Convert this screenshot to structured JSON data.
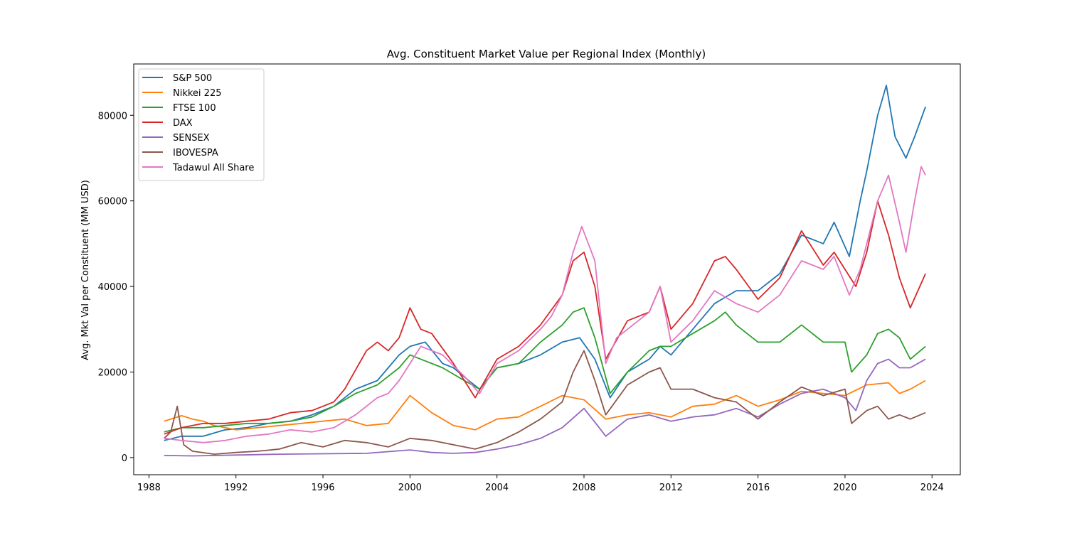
{
  "chart_data": {
    "type": "line",
    "title": "Avg. Constituent Market Value per Regional Index (Monthly)",
    "xlabel": "",
    "ylabel": "Avg. Mkt Val per Constituent (MM USD)",
    "xlim": [
      1987.3,
      2025.3
    ],
    "ylim": [
      -4000,
      92000
    ],
    "x_ticks": [
      1988,
      1992,
      1996,
      2000,
      2004,
      2008,
      2012,
      2016,
      2020,
      2024
    ],
    "x_tick_labels": [
      "1988",
      "1992",
      "1996",
      "2000",
      "2004",
      "2008",
      "2012",
      "2016",
      "2020",
      "2024"
    ],
    "y_ticks": [
      0,
      20000,
      40000,
      60000,
      80000
    ],
    "y_tick_labels": [
      "0",
      "20000",
      "40000",
      "60000",
      "80000"
    ],
    "legend_position": "top-left",
    "grid": false,
    "series": [
      {
        "name": "S&P 500",
        "color": "#1f77b4",
        "x": [
          1988.7,
          1989.5,
          1990.5,
          1991.5,
          1992.5,
          1993.5,
          1994.5,
          1995.5,
          1996.5,
          1997.5,
          1998.5,
          1999.0,
          1999.5,
          2000.0,
          2000.7,
          2001.5,
          2002.0,
          2002.7,
          2003.2,
          2004.0,
          2005.0,
          2006.0,
          2007.0,
          2007.8,
          2008.5,
          2009.2,
          2010.0,
          2011.0,
          2011.5,
          2012.0,
          2013.0,
          2014.0,
          2015.0,
          2016.0,
          2017.0,
          2018.0,
          2019.0,
          2019.5,
          2020.2,
          2020.7,
          2021.0,
          2021.5,
          2021.9,
          2022.3,
          2022.8,
          2023.2,
          2023.7
        ],
        "values": [
          4000,
          5000,
          5000,
          6500,
          7000,
          8000,
          8500,
          10000,
          12000,
          16000,
          18000,
          21000,
          24000,
          26000,
          27000,
          22000,
          21000,
          18000,
          16000,
          21000,
          22000,
          24000,
          27000,
          28000,
          23000,
          14000,
          20000,
          23000,
          26000,
          24000,
          30000,
          36000,
          39000,
          39000,
          43000,
          52000,
          50000,
          55000,
          47000,
          60000,
          67000,
          80000,
          87000,
          75000,
          70000,
          75000,
          82000
        ]
      },
      {
        "name": "Nikkei 225",
        "color": "#ff7f0e",
        "x": [
          1988.7,
          1989.5,
          1990.0,
          1990.5,
          1991.0,
          1992.0,
          1993.0,
          1994.0,
          1995.0,
          1996.0,
          1997.0,
          1998.0,
          1999.0,
          2000.0,
          2001.0,
          2002.0,
          2003.0,
          2004.0,
          2005.0,
          2006.0,
          2007.0,
          2008.0,
          2009.0,
          2010.0,
          2011.0,
          2012.0,
          2013.0,
          2014.0,
          2015.0,
          2016.0,
          2017.0,
          2018.0,
          2019.0,
          2020.0,
          2021.0,
          2022.0,
          2022.5,
          2023.0,
          2023.7
        ],
        "values": [
          8500,
          9800,
          9000,
          8500,
          7500,
          6500,
          7000,
          7500,
          8000,
          8500,
          9000,
          7500,
          8000,
          14500,
          10500,
          7500,
          6500,
          9000,
          9500,
          12000,
          14500,
          13500,
          9000,
          10000,
          10500,
          9500,
          12000,
          12500,
          14500,
          12000,
          13500,
          15500,
          15000,
          14500,
          17000,
          17500,
          15000,
          16000,
          18000
        ]
      },
      {
        "name": "FTSE 100",
        "color": "#2ca02c",
        "x": [
          1988.7,
          1989.5,
          1990.5,
          1991.5,
          1992.5,
          1993.5,
          1994.5,
          1995.5,
          1996.5,
          1997.5,
          1998.5,
          1999.5,
          2000.0,
          2000.5,
          2001.5,
          2002.5,
          2003.2,
          2004.0,
          2005.0,
          2006.0,
          2007.0,
          2007.5,
          2008.0,
          2008.5,
          2009.2,
          2010.0,
          2011.0,
          2011.5,
          2012.0,
          2013.0,
          2014.0,
          2014.5,
          2015.0,
          2016.0,
          2017.0,
          2018.0,
          2019.0,
          2020.0,
          2020.3,
          2021.0,
          2021.5,
          2022.0,
          2022.5,
          2023.0,
          2023.7
        ],
        "values": [
          6000,
          7000,
          7000,
          7500,
          8000,
          8000,
          8500,
          9500,
          12000,
          15000,
          17000,
          21000,
          24000,
          23000,
          21000,
          18000,
          16000,
          21000,
          22000,
          27000,
          31000,
          34000,
          35000,
          28000,
          15000,
          20000,
          25000,
          26000,
          26000,
          29000,
          32000,
          34000,
          31000,
          27000,
          27000,
          31000,
          27000,
          27000,
          20000,
          24000,
          29000,
          30000,
          28000,
          23000,
          26000
        ]
      },
      {
        "name": "DAX",
        "color": "#d62728",
        "x": [
          1988.7,
          1989.5,
          1990.5,
          1991.5,
          1992.5,
          1993.5,
          1994.5,
          1995.5,
          1996.0,
          1996.5,
          1997.0,
          1998.0,
          1998.5,
          1999.0,
          1999.5,
          2000.0,
          2000.5,
          2001.0,
          2002.0,
          2003.0,
          2004.0,
          2005.0,
          2006.0,
          2007.0,
          2007.5,
          2008.0,
          2008.5,
          2009.0,
          2010.0,
          2011.0,
          2011.5,
          2012.0,
          2013.0,
          2014.0,
          2014.5,
          2015.0,
          2016.0,
          2017.0,
          2018.0,
          2019.0,
          2019.5,
          2020.0,
          2020.5,
          2021.0,
          2021.5,
          2022.0,
          2022.5,
          2023.0,
          2023.7
        ],
        "values": [
          5500,
          7000,
          8000,
          8000,
          8500,
          9000,
          10500,
          11000,
          12000,
          13000,
          16000,
          25000,
          27000,
          25000,
          28000,
          35000,
          30000,
          29000,
          22000,
          14000,
          23000,
          26000,
          31000,
          38000,
          46000,
          48000,
          40000,
          23000,
          32000,
          34000,
          40000,
          30000,
          36000,
          46000,
          47000,
          44000,
          37000,
          42000,
          53000,
          45000,
          48000,
          44000,
          40000,
          48000,
          60000,
          52000,
          42000,
          35000,
          43000
        ]
      },
      {
        "name": "SENSEX",
        "color": "#9467bd",
        "x": [
          1988.7,
          1990.0,
          1992.0,
          1994.0,
          1996.0,
          1998.0,
          2000.0,
          2001.0,
          2002.0,
          2003.0,
          2004.0,
          2005.0,
          2006.0,
          2007.0,
          2008.0,
          2008.7,
          2009.0,
          2010.0,
          2011.0,
          2012.0,
          2013.0,
          2014.0,
          2015.0,
          2016.0,
          2017.0,
          2018.0,
          2019.0,
          2020.0,
          2020.5,
          2021.0,
          2021.5,
          2022.0,
          2022.5,
          2023.0,
          2023.7
        ],
        "values": [
          500,
          400,
          600,
          800,
          900,
          1000,
          1800,
          1200,
          1000,
          1200,
          2000,
          3000,
          4500,
          7000,
          11500,
          7000,
          5000,
          9000,
          10000,
          8500,
          9500,
          10000,
          11500,
          9500,
          12500,
          15000,
          16000,
          14000,
          11000,
          18000,
          22000,
          23000,
          21000,
          21000,
          23000
        ]
      },
      {
        "name": "IBOVESPA",
        "color": "#8c564b",
        "x": [
          1988.7,
          1989.0,
          1989.3,
          1989.6,
          1990.0,
          1991.0,
          1992.0,
          1993.0,
          1994.0,
          1995.0,
          1996.0,
          1997.0,
          1998.0,
          1999.0,
          2000.0,
          2001.0,
          2002.0,
          2003.0,
          2004.0,
          2005.0,
          2006.0,
          2007.0,
          2007.5,
          2008.0,
          2008.5,
          2009.0,
          2010.0,
          2011.0,
          2011.5,
          2012.0,
          2013.0,
          2014.0,
          2015.0,
          2016.0,
          2017.0,
          2018.0,
          2019.0,
          2020.0,
          2020.3,
          2021.0,
          2021.5,
          2022.0,
          2022.5,
          2023.0,
          2023.7
        ],
        "values": [
          4500,
          6000,
          12000,
          3000,
          1500,
          800,
          1200,
          1500,
          2000,
          3500,
          2500,
          4000,
          3500,
          2500,
          4500,
          4000,
          3000,
          2000,
          3500,
          6000,
          9000,
          13000,
          20000,
          25000,
          18000,
          10000,
          17000,
          20000,
          21000,
          16000,
          16000,
          14000,
          13000,
          9000,
          13000,
          16500,
          14500,
          16000,
          8000,
          11000,
          12000,
          9000,
          10000,
          9000,
          10500
        ]
      },
      {
        "name": "Tadawul All Share",
        "color": "#e377c2",
        "x": [
          1988.7,
          1989.5,
          1990.5,
          1991.5,
          1992.5,
          1993.5,
          1994.5,
          1995.5,
          1996.5,
          1997.5,
          1998.5,
          1999.0,
          1999.5,
          2000.0,
          2000.5,
          2001.5,
          2002.5,
          2003.2,
          2004.0,
          2005.0,
          2006.0,
          2006.5,
          2007.0,
          2007.5,
          2007.9,
          2008.5,
          2009.0,
          2009.5,
          2010.0,
          2011.0,
          2011.5,
          2012.0,
          2013.0,
          2014.0,
          2015.0,
          2016.0,
          2017.0,
          2018.0,
          2019.0,
          2019.5,
          2020.2,
          2020.7,
          2021.0,
          2021.5,
          2022.0,
          2022.5,
          2022.8,
          2023.2,
          2023.5,
          2023.7
        ],
        "values": [
          4500,
          4000,
          3500,
          4000,
          5000,
          5500,
          6500,
          6000,
          7000,
          10000,
          14000,
          15000,
          18000,
          22000,
          26000,
          24000,
          19000,
          15000,
          22000,
          25000,
          30000,
          33000,
          38000,
          48000,
          54000,
          46000,
          22000,
          28000,
          30000,
          34000,
          40000,
          27000,
          32000,
          39000,
          36000,
          34000,
          38000,
          46000,
          44000,
          47000,
          38000,
          44000,
          50000,
          60000,
          66000,
          55000,
          48000,
          60000,
          68000,
          66000
        ]
      }
    ]
  }
}
